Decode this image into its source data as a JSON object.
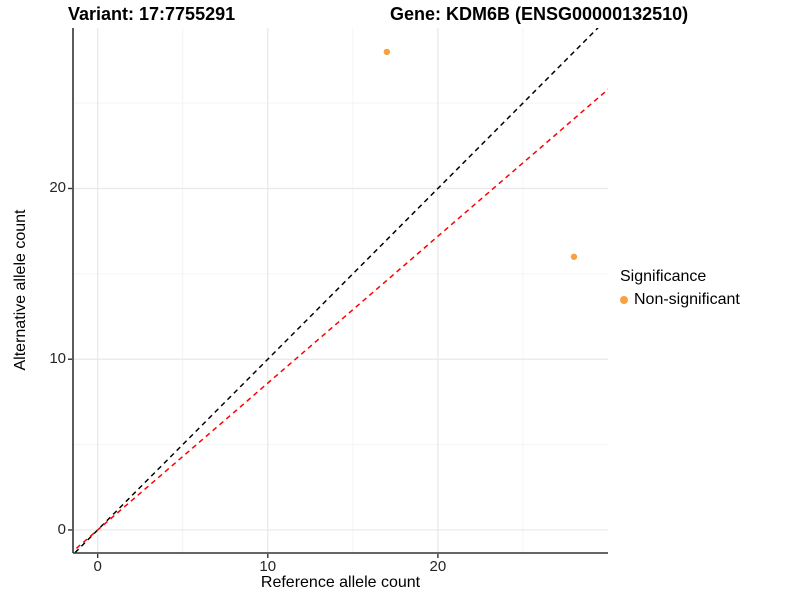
{
  "chart_data": {
    "type": "scatter",
    "titles": {
      "left": "Variant: 17:7755291",
      "right": "Gene: KDM6B (ENSG00000132510)"
    },
    "xlabel": "Reference allele count",
    "ylabel": "Alternative allele count",
    "xlim": [
      -1.45,
      30.0
    ],
    "ylim": [
      -1.35,
      29.4
    ],
    "x_ticks": [
      0,
      10,
      20
    ],
    "y_ticks": [
      0,
      10,
      20
    ],
    "x_minor_ticks": [
      5,
      15,
      25
    ],
    "y_minor_ticks": [
      5,
      15,
      25
    ],
    "grid": "major+minor",
    "series": [
      {
        "name": "Non-significant",
        "color": "#F9A03F",
        "point_radius": 3.2,
        "points": [
          {
            "x": 17,
            "y": 28
          },
          {
            "x": 28,
            "y": 16
          }
        ]
      }
    ],
    "reference_lines": [
      {
        "name": "identity-line",
        "slope": 1.0,
        "intercept": 0,
        "color": "#000000",
        "linetype": "dashed"
      },
      {
        "name": "expected-ratio-line",
        "slope": 0.86,
        "intercept": 0,
        "color": "#FF0000",
        "linetype": "dashed"
      }
    ],
    "legend": {
      "title": "Significance",
      "position": "right",
      "items": [
        {
          "label": "Non-significant",
          "color": "#F9A03F"
        }
      ]
    },
    "colors": {
      "background": "#FFFFFF",
      "grid_major": "#E8E8E8",
      "grid_minor": "#F4F4F4",
      "axis_line": "#333333",
      "tick_mark": "#333333",
      "tick_label": "#262626"
    }
  }
}
